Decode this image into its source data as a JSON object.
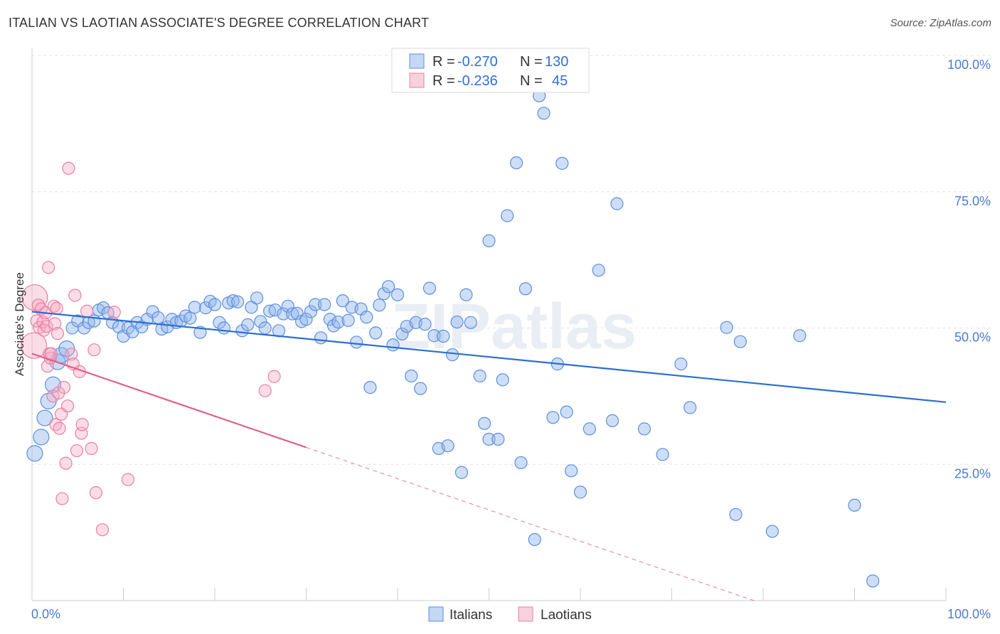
{
  "title": "ITALIAN VS LAOTIAN ASSOCIATE'S DEGREE CORRELATION CHART",
  "source": "Source: ZipAtlas.com",
  "watermark": "ZIPatlas",
  "colors": {
    "italians": "#5b8fe0",
    "italians_fill": "rgba(147,182,236,0.45)",
    "laotians": "#ec7fa2",
    "laotians_fill": "rgba(244,170,195,0.40)",
    "italians_line": "#2b6fd1",
    "laotians_line": "#e0608a",
    "grid": "#dde3ea",
    "tick_text": "#4a7bd0"
  },
  "legend": {
    "rows": [
      {
        "r_label": "R =",
        "r_value": "-0.270",
        "n_label": "N =",
        "n_value": "130"
      },
      {
        "r_label": "R =",
        "r_value": "-0.236",
        "n_label": "N =",
        "n_value": "45"
      }
    ]
  },
  "bottom_legend": [
    "Italians",
    "Laotians"
  ],
  "chart_data": {
    "type": "scatter",
    "xlabel": "",
    "ylabel": "Associate's Degree",
    "x_tick_labels": [
      "0.0%",
      "100.0%"
    ],
    "y_tick_labels": [
      "25.0%",
      "50.0%",
      "75.0%",
      "100.0%"
    ],
    "xlim": [
      0,
      100
    ],
    "ylim": [
      0,
      100
    ],
    "grid": true,
    "legend_placement": "top-center",
    "series": [
      {
        "name": "Italians",
        "trend": {
          "x0": 0,
          "y0": 53,
          "x1": 100,
          "y1": 36.4
        },
        "points": [
          [
            0.3,
            27
          ],
          [
            1,
            30
          ],
          [
            1.4,
            33.5
          ],
          [
            1.8,
            36.6
          ],
          [
            2.3,
            39.6
          ],
          [
            2.8,
            43.8
          ],
          [
            3.2,
            45
          ],
          [
            3.8,
            46.2
          ],
          [
            4.4,
            50
          ],
          [
            5,
            51.3
          ],
          [
            5.7,
            50
          ],
          [
            6.2,
            51
          ],
          [
            6.8,
            51.3
          ],
          [
            7.3,
            53.3
          ],
          [
            7.8,
            53.7
          ],
          [
            8.3,
            52.8
          ],
          [
            8.8,
            51
          ],
          [
            9.5,
            50.2
          ],
          [
            10,
            48.5
          ],
          [
            10.5,
            50
          ],
          [
            11,
            49.3
          ],
          [
            11.5,
            51
          ],
          [
            12,
            50.2
          ],
          [
            12.6,
            51.6
          ],
          [
            13.2,
            53
          ],
          [
            13.8,
            51.9
          ],
          [
            14.2,
            49.8
          ],
          [
            14.8,
            50.2
          ],
          [
            15.3,
            51.6
          ],
          [
            15.8,
            51
          ],
          [
            16.3,
            51.3
          ],
          [
            16.8,
            52.2
          ],
          [
            17.3,
            51.8
          ],
          [
            17.8,
            53.8
          ],
          [
            18.4,
            49.2
          ],
          [
            19,
            53.7
          ],
          [
            19.5,
            54.9
          ],
          [
            20,
            54.3
          ],
          [
            20.5,
            51
          ],
          [
            21,
            50
          ],
          [
            21.5,
            54.6
          ],
          [
            22,
            55
          ],
          [
            22.5,
            54.8
          ],
          [
            23,
            49.5
          ],
          [
            23.6,
            50.6
          ],
          [
            24,
            53.8
          ],
          [
            24.6,
            55.5
          ],
          [
            25,
            51.2
          ],
          [
            25.5,
            50
          ],
          [
            26,
            53.1
          ],
          [
            26.6,
            53.3
          ],
          [
            27,
            49.5
          ],
          [
            27.5,
            52.6
          ],
          [
            28,
            54
          ],
          [
            28.5,
            52.6
          ],
          [
            29,
            52.7
          ],
          [
            29.5,
            51.2
          ],
          [
            30,
            51.6
          ],
          [
            30.5,
            53
          ],
          [
            31,
            54.3
          ],
          [
            31.6,
            48.2
          ],
          [
            32,
            54.3
          ],
          [
            32.6,
            51.6
          ],
          [
            33,
            50.4
          ],
          [
            33.5,
            51.1
          ],
          [
            34,
            55
          ],
          [
            34.6,
            51.4
          ],
          [
            35,
            53.8
          ],
          [
            35.5,
            47.4
          ],
          [
            36,
            53.5
          ],
          [
            36.6,
            52
          ],
          [
            37,
            39.1
          ],
          [
            37.6,
            49.1
          ],
          [
            38,
            54.2
          ],
          [
            38.5,
            56.3
          ],
          [
            39,
            57.6
          ],
          [
            39.5,
            46.9
          ],
          [
            40,
            56.1
          ],
          [
            40.5,
            48.9
          ],
          [
            41,
            50.3
          ],
          [
            41.5,
            41.2
          ],
          [
            42,
            51
          ],
          [
            42.5,
            38.9
          ],
          [
            43,
            50.7
          ],
          [
            43.5,
            57.3
          ],
          [
            44,
            48.6
          ],
          [
            44.5,
            27.9
          ],
          [
            45,
            48.5
          ],
          [
            45.5,
            28.4
          ],
          [
            46,
            45.1
          ],
          [
            46.5,
            51.1
          ],
          [
            47,
            23.5
          ],
          [
            47.5,
            56.1
          ],
          [
            48,
            51
          ],
          [
            49,
            41.2
          ],
          [
            49.5,
            32.5
          ],
          [
            50,
            29.6
          ],
          [
            51,
            29.6
          ],
          [
            51.5,
            40.5
          ],
          [
            52,
            70.6
          ],
          [
            53,
            80.3
          ],
          [
            53.5,
            25.3
          ],
          [
            54,
            57.2
          ],
          [
            55,
            11.2
          ],
          [
            55.5,
            92.6
          ],
          [
            56,
            89.4
          ],
          [
            57,
            33.6
          ],
          [
            57.5,
            43.4
          ],
          [
            58,
            80.2
          ],
          [
            58.5,
            34.6
          ],
          [
            59,
            23.8
          ],
          [
            60,
            19.9
          ],
          [
            61,
            31.5
          ],
          [
            62,
            60.6
          ],
          [
            63.5,
            33
          ],
          [
            64,
            72.8
          ],
          [
            67,
            31.5
          ],
          [
            69,
            26.8
          ],
          [
            71,
            43.4
          ],
          [
            72,
            35.4
          ],
          [
            76,
            50.1
          ],
          [
            77,
            15.8
          ],
          [
            77.5,
            47.5
          ],
          [
            81,
            12.7
          ],
          [
            84,
            48.6
          ],
          [
            90,
            17.5
          ],
          [
            92,
            3.6
          ],
          [
            50,
            66
          ]
        ]
      },
      {
        "name": "Laotians",
        "trend": {
          "x0": 0,
          "y0": 45.3,
          "x1": 30,
          "y1": 28.1
        },
        "trend_dashed": {
          "x0": 30,
          "y0": 28.1,
          "x1": 79,
          "y1": 0
        },
        "points": [
          [
            0.2,
            46.8
          ],
          [
            0.3,
            55.6
          ],
          [
            0.5,
            51.3
          ],
          [
            0.7,
            54.2
          ],
          [
            0.8,
            50.1
          ],
          [
            1,
            53.5
          ],
          [
            1.2,
            51.1
          ],
          [
            1.3,
            49.6
          ],
          [
            1.5,
            52.8
          ],
          [
            1.6,
            50.3
          ],
          [
            1.7,
            43
          ],
          [
            1.8,
            61.1
          ],
          [
            1.9,
            45.3
          ],
          [
            2,
            44.5
          ],
          [
            2.1,
            45.3
          ],
          [
            2.3,
            37.5
          ],
          [
            2.4,
            54
          ],
          [
            2.5,
            50.8
          ],
          [
            2.6,
            32.3
          ],
          [
            2.7,
            53.6
          ],
          [
            2.8,
            49
          ],
          [
            2.9,
            38.1
          ],
          [
            3,
            31.6
          ],
          [
            3.2,
            34.2
          ],
          [
            3.3,
            18.7
          ],
          [
            3.5,
            39.1
          ],
          [
            3.7,
            25.2
          ],
          [
            3.9,
            35.7
          ],
          [
            4,
            79.3
          ],
          [
            4.3,
            45.2
          ],
          [
            4.5,
            43.4
          ],
          [
            4.7,
            56
          ],
          [
            4.9,
            27.5
          ],
          [
            5.2,
            42
          ],
          [
            5.4,
            30.7
          ],
          [
            5.5,
            32.3
          ],
          [
            6,
            53.1
          ],
          [
            6.5,
            27.9
          ],
          [
            6.8,
            46
          ],
          [
            7,
            19.8
          ],
          [
            7.7,
            13
          ],
          [
            9,
            52.9
          ],
          [
            10.5,
            22.2
          ],
          [
            25.5,
            38.5
          ],
          [
            26.5,
            41.1
          ]
        ]
      }
    ]
  }
}
